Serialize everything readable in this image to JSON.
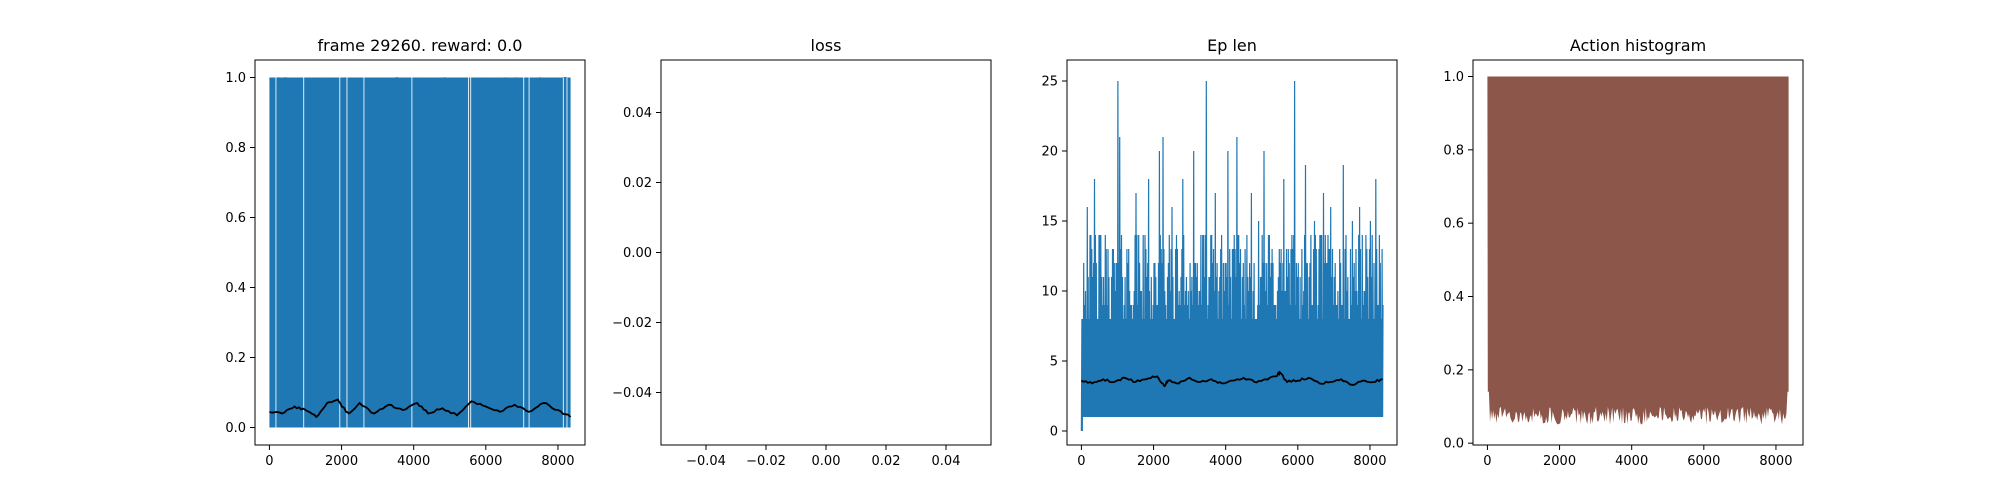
{
  "chart_data": [
    {
      "type": "line",
      "title": "frame 29260. reward: 0.0",
      "xlim": [
        -400,
        8750
      ],
      "ylim": [
        -0.05,
        1.05
      ],
      "x_ticks": [
        0,
        2000,
        4000,
        6000,
        8000
      ],
      "x_tick_labels": [
        "0",
        "2000",
        "4000",
        "6000",
        "8000"
      ],
      "y_ticks": [
        0.0,
        0.2,
        0.4,
        0.6,
        0.8,
        1.0
      ],
      "y_tick_labels": [
        "0.0",
        "0.2",
        "0.4",
        "0.6",
        "0.8",
        "1.0"
      ],
      "series": [
        {
          "style": "raw-per-episode",
          "color": "#1f77b4",
          "x_range": [
            0,
            8350
          ],
          "values_range": [
            0.0,
            1.0
          ],
          "gaps_at_x": [
            180,
            950,
            1950,
            2150,
            2620,
            3950,
            5520,
            5580,
            7050,
            7200,
            8150,
            8250
          ]
        },
        {
          "style": "moving-average",
          "color": "#000000",
          "x": [
            0,
            350,
            700,
            1000,
            1300,
            1600,
            1900,
            2000,
            2200,
            2500,
            2900,
            3300,
            3700,
            4100,
            4400,
            4800,
            5200,
            5600,
            6000,
            6400,
            6800,
            7200,
            7600,
            8000,
            8350
          ],
          "values": [
            0.045,
            0.04,
            0.06,
            0.05,
            0.03,
            0.07,
            0.08,
            0.06,
            0.04,
            0.07,
            0.04,
            0.065,
            0.05,
            0.07,
            0.04,
            0.055,
            0.035,
            0.075,
            0.06,
            0.045,
            0.065,
            0.045,
            0.07,
            0.05,
            0.03
          ]
        }
      ]
    },
    {
      "type": "line",
      "title": "loss",
      "xlim": [
        -0.055,
        0.055
      ],
      "ylim": [
        -0.055,
        0.055
      ],
      "x_ticks": [
        -0.04,
        -0.02,
        0.0,
        0.02,
        0.04
      ],
      "x_tick_labels": [
        "−0.04",
        "−0.02",
        "0.00",
        "0.02",
        "0.04"
      ],
      "y_ticks": [
        -0.04,
        -0.02,
        0.0,
        0.02,
        0.04
      ],
      "y_tick_labels": [
        "−0.04",
        "−0.02",
        "0.00",
        "0.02",
        "0.04"
      ],
      "series": []
    },
    {
      "type": "line",
      "title": "Ep len",
      "xlim": [
        -400,
        8750
      ],
      "ylim": [
        -1,
        26.5
      ],
      "x_ticks": [
        0,
        2000,
        4000,
        6000,
        8000
      ],
      "x_tick_labels": [
        "0",
        "2000",
        "4000",
        "6000",
        "8000"
      ],
      "y_ticks": [
        0,
        5,
        10,
        15,
        20,
        25
      ],
      "y_tick_labels": [
        "0",
        "5",
        "10",
        "15",
        "20",
        "25"
      ],
      "series": [
        {
          "style": "raw-per-episode",
          "color": "#1f77b4",
          "x_range": [
            0,
            8350
          ],
          "values_range": [
            1,
            25
          ],
          "spikes": [
            {
              "x": 1000,
              "y": 25
            },
            {
              "x": 3450,
              "y": 25
            },
            {
              "x": 5900,
              "y": 25
            },
            {
              "x": 1050,
              "y": 21
            },
            {
              "x": 2250,
              "y": 21
            },
            {
              "x": 4300,
              "y": 21
            },
            {
              "x": 2150,
              "y": 20
            },
            {
              "x": 3100,
              "y": 20
            },
            {
              "x": 4050,
              "y": 20
            },
            {
              "x": 5050,
              "y": 20
            },
            {
              "x": 6200,
              "y": 19
            },
            {
              "x": 7250,
              "y": 19
            },
            {
              "x": 1850,
              "y": 18
            },
            {
              "x": 2800,
              "y": 18
            },
            {
              "x": 5600,
              "y": 18
            },
            {
              "x": 8150,
              "y": 18
            },
            {
              "x": 350,
              "y": 18
            },
            {
              "x": 1500,
              "y": 17
            },
            {
              "x": 3700,
              "y": 17
            },
            {
              "x": 4700,
              "y": 17
            },
            {
              "x": 6700,
              "y": 17
            },
            {
              "x": 150,
              "y": 16
            },
            {
              "x": 2500,
              "y": 16
            },
            {
              "x": 6900,
              "y": 16
            },
            {
              "x": 7700,
              "y": 16
            },
            {
              "x": 4900,
              "y": 15
            },
            {
              "x": 6450,
              "y": 15
            },
            {
              "x": 7500,
              "y": 15
            },
            {
              "x": 8000,
              "y": 15
            }
          ]
        },
        {
          "style": "moving-average",
          "color": "#000000",
          "x": [
            0,
            300,
            600,
            900,
            1200,
            1500,
            1800,
            2100,
            2300,
            2400,
            2700,
            3000,
            3300,
            3600,
            3900,
            4200,
            4500,
            4800,
            5100,
            5400,
            5500,
            5700,
            6000,
            6300,
            6600,
            6900,
            7200,
            7500,
            7800,
            8100,
            8350
          ],
          "values": [
            3.6,
            3.4,
            3.7,
            3.5,
            3.8,
            3.5,
            3.7,
            3.9,
            3.2,
            3.6,
            3.4,
            3.8,
            3.5,
            3.7,
            3.4,
            3.6,
            3.8,
            3.5,
            3.7,
            3.9,
            4.2,
            3.5,
            3.6,
            3.8,
            3.4,
            3.5,
            3.7,
            3.3,
            3.6,
            3.5,
            3.7
          ]
        }
      ]
    },
    {
      "type": "area",
      "title": "Action histogram",
      "xlim": [
        -400,
        8750
      ],
      "ylim": [
        -0.005,
        1.045
      ],
      "x_ticks": [
        0,
        2000,
        4000,
        6000,
        8000
      ],
      "x_tick_labels": [
        "0",
        "2000",
        "4000",
        "6000",
        "8000"
      ],
      "y_ticks": [
        0.0,
        0.2,
        0.4,
        0.6,
        0.8,
        1.0
      ],
      "y_tick_labels": [
        "0.0",
        "0.2",
        "0.4",
        "0.6",
        "0.8",
        "1.0"
      ],
      "series": [
        {
          "style": "stacked-fill",
          "color": "#8c564b",
          "x_range": [
            0,
            8350
          ],
          "top": 1.0,
          "bottom_range": [
            0.05,
            0.14
          ]
        }
      ]
    }
  ]
}
